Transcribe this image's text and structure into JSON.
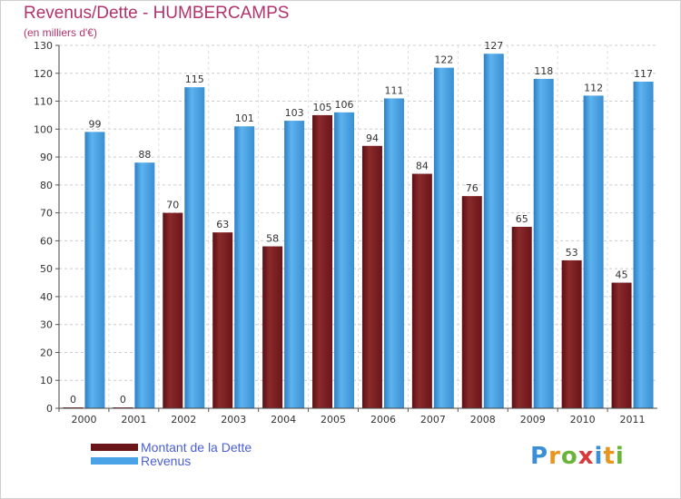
{
  "chart_data": {
    "type": "bar",
    "title": "Revenus/Dette - HUMBERCAMPS",
    "subtitle": "(en milliers d'€)",
    "categories": [
      "2000",
      "2001",
      "2002",
      "2003",
      "2004",
      "2005",
      "2006",
      "2007",
      "2008",
      "2009",
      "2010",
      "2011"
    ],
    "series": [
      {
        "name": "Montant de la Dette",
        "color": "#7a1e22",
        "values": [
          0,
          0,
          70,
          63,
          58,
          105,
          94,
          84,
          76,
          65,
          53,
          45
        ]
      },
      {
        "name": "Revenus",
        "color": "#4aa3e6",
        "values": [
          99,
          88,
          115,
          101,
          103,
          106,
          111,
          122,
          127,
          118,
          112,
          117
        ]
      }
    ],
    "ylim": [
      0,
      130
    ],
    "yticks": [
      0,
      10,
      20,
      30,
      40,
      50,
      60,
      70,
      80,
      90,
      100,
      110,
      120,
      130
    ],
    "grid": true,
    "legend_position": "bottom-left"
  },
  "logo": {
    "text": "Proxiti",
    "icon": "proxiti-logo"
  }
}
